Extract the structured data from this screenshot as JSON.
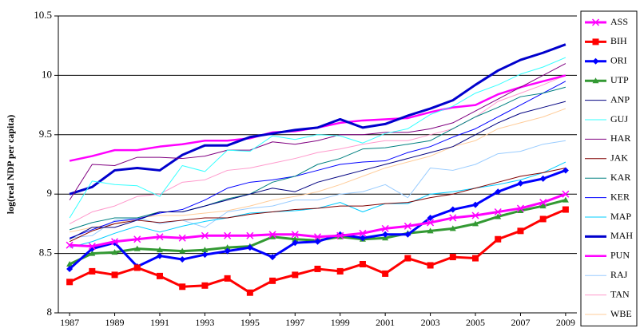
{
  "chart_data": {
    "type": "line",
    "y_label": "log(real NDP per capita)",
    "x": [
      1987,
      1988,
      1989,
      1990,
      1991,
      1992,
      1993,
      1994,
      1995,
      1996,
      1997,
      1998,
      1999,
      2000,
      2001,
      2002,
      2003,
      2004,
      2005,
      2006,
      2007,
      2008,
      2009
    ],
    "xlim": [
      1986.5,
      2009.5
    ],
    "xticks": [
      1987,
      1989,
      1991,
      1993,
      1995,
      1997,
      1999,
      2001,
      2003,
      2005,
      2007,
      2009
    ],
    "ylim": [
      8,
      10.5
    ],
    "yticks": [
      8,
      8.5,
      9,
      9.5,
      10,
      10.5
    ],
    "grid": true,
    "legend": "right",
    "series": [
      {
        "name": "ASS",
        "color": "#ff00ff",
        "line_width": 3,
        "marker": "x",
        "values": [
          8.57,
          8.56,
          8.6,
          8.62,
          8.64,
          8.63,
          8.65,
          8.65,
          8.65,
          8.66,
          8.66,
          8.64,
          8.65,
          8.67,
          8.71,
          8.73,
          8.76,
          8.8,
          8.82,
          8.85,
          8.88,
          8.93,
          9.0
        ]
      },
      {
        "name": "BIH",
        "color": "#ff0000",
        "line_width": 3,
        "marker": "square",
        "values": [
          8.26,
          8.35,
          8.32,
          8.38,
          8.31,
          8.22,
          8.23,
          8.29,
          8.17,
          8.27,
          8.32,
          8.37,
          8.35,
          8.41,
          8.33,
          8.46,
          8.4,
          8.47,
          8.46,
          8.62,
          8.69,
          8.79,
          8.87
        ]
      },
      {
        "name": "ORI",
        "color": "#0000ff",
        "line_width": 3,
        "marker": "diamond",
        "values": [
          8.37,
          8.54,
          8.59,
          8.39,
          8.48,
          8.45,
          8.49,
          8.52,
          8.55,
          8.47,
          8.59,
          8.6,
          8.66,
          8.63,
          8.66,
          8.66,
          8.8,
          8.87,
          8.91,
          9.02,
          9.09,
          9.13,
          9.2
        ]
      },
      {
        "name": "UTP",
        "color": "#339933",
        "line_width": 3,
        "marker": "triangle",
        "values": [
          8.41,
          8.5,
          8.51,
          8.54,
          8.53,
          8.52,
          8.53,
          8.55,
          8.56,
          8.64,
          8.62,
          8.61,
          8.64,
          8.62,
          8.63,
          8.67,
          8.69,
          8.71,
          8.75,
          8.81,
          8.86,
          8.9,
          8.95
        ]
      },
      {
        "name": "ANP",
        "color": "#000080",
        "line_width": 1,
        "values": [
          8.62,
          8.72,
          8.72,
          8.78,
          8.85,
          8.85,
          8.9,
          8.95,
          9.0,
          9.05,
          9.02,
          9.1,
          9.15,
          9.2,
          9.25,
          9.3,
          9.35,
          9.4,
          9.5,
          9.6,
          9.68,
          9.73,
          9.78
        ]
      },
      {
        "name": "GUJ",
        "color": "#33ffff",
        "line_width": 1,
        "values": [
          8.8,
          9.11,
          9.08,
          9.07,
          8.98,
          9.24,
          9.19,
          9.37,
          9.36,
          9.49,
          9.46,
          9.5,
          9.49,
          9.43,
          9.51,
          9.55,
          9.67,
          9.74,
          9.85,
          9.92,
          10.01,
          10.07,
          10.15
        ]
      },
      {
        "name": "HAR",
        "color": "#800080",
        "line_width": 1,
        "values": [
          8.95,
          9.25,
          9.24,
          9.31,
          9.31,
          9.3,
          9.32,
          9.37,
          9.37,
          9.44,
          9.42,
          9.45,
          9.5,
          9.5,
          9.52,
          9.52,
          9.55,
          9.6,
          9.7,
          9.8,
          9.9,
          10.0,
          10.1
        ]
      },
      {
        "name": "JAK",
        "color": "#800000",
        "line_width": 1,
        "values": [
          8.6,
          8.69,
          8.75,
          8.78,
          8.76,
          8.78,
          8.8,
          8.8,
          8.83,
          8.85,
          8.87,
          8.88,
          8.9,
          8.9,
          8.92,
          8.93,
          8.97,
          9.0,
          9.05,
          9.1,
          9.15,
          9.18,
          9.22
        ]
      },
      {
        "name": "KAR",
        "color": "#008080",
        "line_width": 1,
        "values": [
          8.7,
          8.76,
          8.8,
          8.8,
          8.85,
          8.85,
          8.9,
          8.96,
          9.0,
          9.1,
          9.15,
          9.25,
          9.3,
          9.38,
          9.39,
          9.42,
          9.45,
          9.55,
          9.65,
          9.73,
          9.82,
          9.85,
          9.9
        ]
      },
      {
        "name": "KER",
        "color": "#0000ff",
        "line_width": 1,
        "values": [
          8.63,
          8.7,
          8.77,
          8.79,
          8.84,
          8.87,
          8.95,
          9.05,
          9.1,
          9.12,
          9.15,
          9.2,
          9.25,
          9.27,
          9.28,
          9.35,
          9.4,
          9.48,
          9.55,
          9.65,
          9.75,
          9.85,
          9.95
        ]
      },
      {
        "name": "MAP",
        "color": "#00ccff",
        "line_width": 1,
        "values": [
          8.55,
          8.6,
          8.67,
          8.73,
          8.68,
          8.73,
          8.77,
          8.8,
          8.84,
          8.85,
          8.86,
          8.88,
          8.93,
          8.85,
          8.92,
          8.92,
          9.0,
          9.02,
          9.05,
          9.08,
          9.12,
          9.18,
          9.27
        ]
      },
      {
        "name": "MAH",
        "color": "#0000cc",
        "line_width": 3,
        "values": [
          9.0,
          9.06,
          9.2,
          9.22,
          9.2,
          9.33,
          9.41,
          9.41,
          9.48,
          9.51,
          9.54,
          9.56,
          9.63,
          9.56,
          9.59,
          9.66,
          9.72,
          9.79,
          9.92,
          10.04,
          10.13,
          10.19,
          10.26
        ]
      },
      {
        "name": "PUN",
        "color": "#ff00ff",
        "line_width": 2.5,
        "values": [
          9.28,
          9.32,
          9.37,
          9.37,
          9.4,
          9.42,
          9.45,
          9.45,
          9.47,
          9.52,
          9.53,
          9.56,
          9.6,
          9.62,
          9.63,
          9.64,
          9.69,
          9.73,
          9.75,
          9.84,
          9.9,
          9.95,
          10.0
        ]
      },
      {
        "name": "RAJ",
        "color": "#99ccff",
        "line_width": 1,
        "values": [
          8.63,
          8.65,
          8.78,
          8.8,
          8.75,
          8.78,
          8.72,
          8.85,
          8.88,
          8.9,
          8.95,
          8.95,
          9.0,
          9.02,
          9.08,
          8.97,
          9.22,
          9.2,
          9.25,
          9.34,
          9.36,
          9.42,
          9.45
        ]
      },
      {
        "name": "TAN",
        "color": "#ff99cc",
        "line_width": 1,
        "values": [
          8.75,
          8.85,
          8.9,
          8.98,
          9.0,
          9.1,
          9.12,
          9.2,
          9.22,
          9.26,
          9.3,
          9.35,
          9.38,
          9.42,
          9.45,
          9.45,
          9.5,
          9.55,
          9.65,
          9.78,
          9.85,
          9.92,
          10.0
        ]
      },
      {
        "name": "WBE",
        "color": "#ffcc99",
        "line_width": 1,
        "values": [
          8.68,
          8.72,
          8.75,
          8.8,
          8.82,
          8.82,
          8.84,
          8.86,
          8.9,
          8.95,
          8.98,
          9.02,
          9.08,
          9.15,
          9.22,
          9.27,
          9.32,
          9.4,
          9.45,
          9.55,
          9.6,
          9.65,
          9.72
        ]
      }
    ]
  }
}
